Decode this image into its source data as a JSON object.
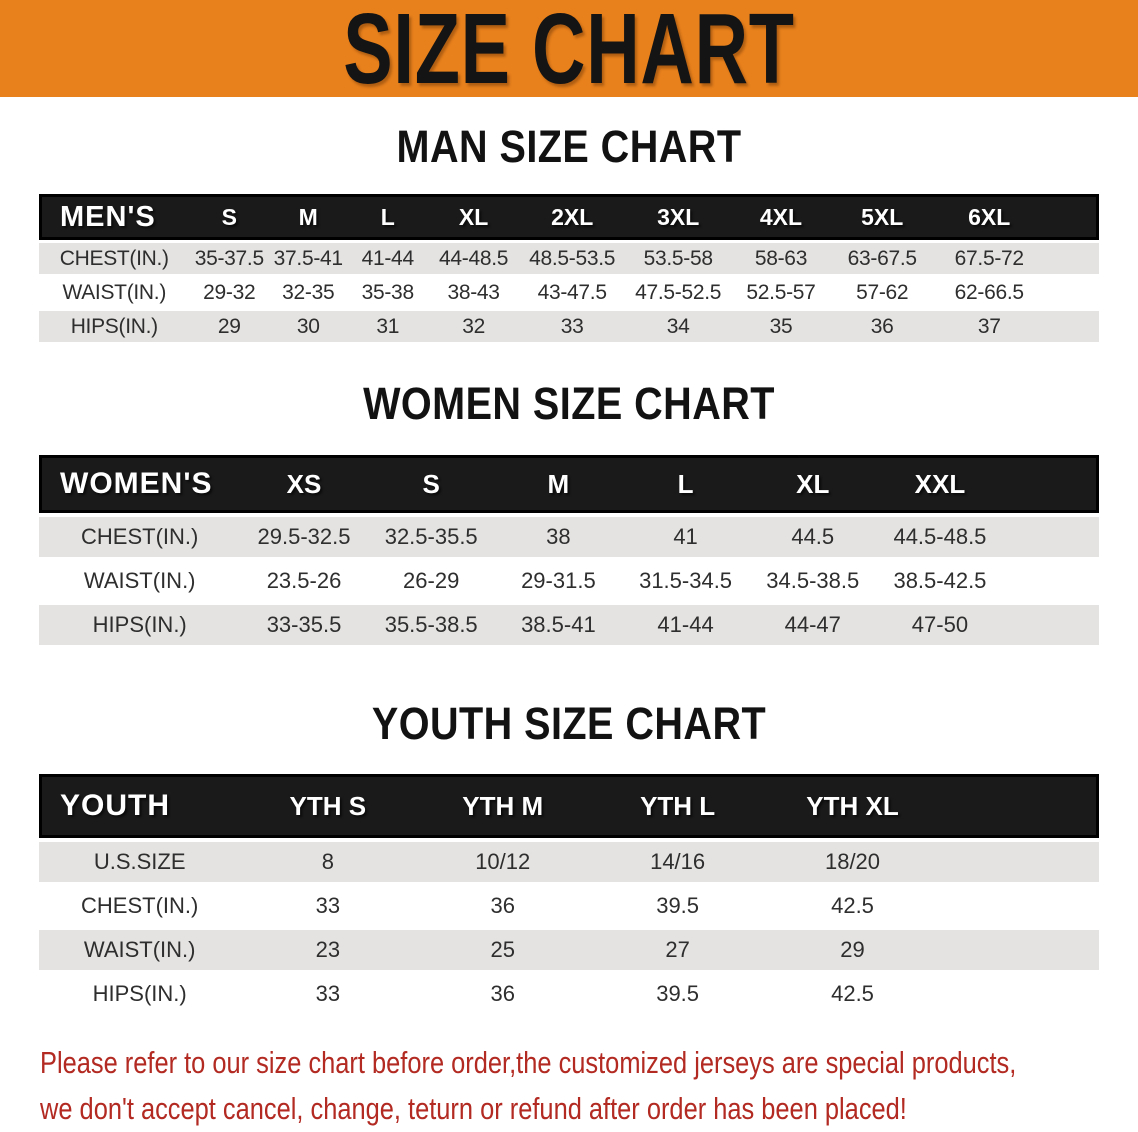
{
  "banner": {
    "title": "SIZE CHART"
  },
  "sections": [
    {
      "heading": "MAN SIZE CHART",
      "table": {
        "label": "MEN'S",
        "columns": [
          "S",
          "M",
          "L",
          "XL",
          "2XL",
          "3XL",
          "4XL",
          "5XL",
          "6XL"
        ],
        "rows": [
          {
            "label": "CHEST(IN.)",
            "values": [
              "35-37.5",
              "37.5-41",
              "41-44",
              "44-48.5",
              "48.5-53.5",
              "53.5-58",
              "58-63",
              "63-67.5",
              "67.5-72"
            ]
          },
          {
            "label": "WAIST(IN.)",
            "values": [
              "29-32",
              "32-35",
              "35-38",
              "38-43",
              "43-47.5",
              "47.5-52.5",
              "52.5-57",
              "57-62",
              "62-66.5"
            ]
          },
          {
            "label": "HIPS(IN.)",
            "values": [
              "29",
              "30",
              "31",
              "32",
              "33",
              "34",
              "35",
              "36",
              "37"
            ]
          }
        ]
      }
    },
    {
      "heading": "WOMEN SIZE CHART",
      "table": {
        "label": "WOMEN'S",
        "columns": [
          "XS",
          "S",
          "M",
          "L",
          "XL",
          "XXL"
        ],
        "rows": [
          {
            "label": "CHEST(IN.)",
            "values": [
              "29.5-32.5",
              "32.5-35.5",
              "38",
              "41",
              "44.5",
              "44.5-48.5"
            ]
          },
          {
            "label": "WAIST(IN.)",
            "values": [
              "23.5-26",
              "26-29",
              "29-31.5",
              "31.5-34.5",
              "34.5-38.5",
              "38.5-42.5"
            ]
          },
          {
            "label": "HIPS(IN.)",
            "values": [
              "33-35.5",
              "35.5-38.5",
              "38.5-41",
              "41-44",
              "44-47",
              "47-50"
            ]
          }
        ]
      }
    },
    {
      "heading": "YOUTH SIZE CHART",
      "table": {
        "label": "YOUTH",
        "columns": [
          "YTH S",
          "YTH M",
          "YTH L",
          "YTH XL"
        ],
        "rows": [
          {
            "label": "U.S.SIZE",
            "values": [
              "8",
              "10/12",
              "14/16",
              "18/20"
            ]
          },
          {
            "label": "CHEST(IN.)",
            "values": [
              "33",
              "36",
              "39.5",
              "42.5"
            ]
          },
          {
            "label": "WAIST(IN.)",
            "values": [
              "23",
              "25",
              "27",
              "29"
            ]
          },
          {
            "label": "HIPS(IN.)",
            "values": [
              "33",
              "36",
              "39.5",
              "42.5"
            ]
          }
        ]
      }
    }
  ],
  "disclaimer": {
    "lines": [
      "Please refer to our size chart before order,the customized jerseys are special products,",
      "we don't accept cancel, change, teturn or refund after order has been placed!"
    ]
  },
  "colors": {
    "banner_bg": "#E8811C",
    "header_band": "#1A1A1A",
    "row_stripe": "#E4E3E1",
    "disclaimer_red": "#B22A22",
    "text_dark": "#2E2E2E"
  }
}
